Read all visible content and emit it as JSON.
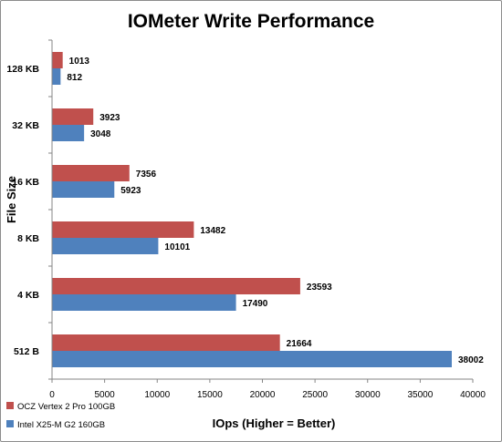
{
  "chart_data": {
    "type": "bar",
    "orientation": "horizontal",
    "title": "IOMeter Write Performance",
    "xlabel": "IOps (Higher = Better)",
    "ylabel": "File Size",
    "categories": [
      "128 KB",
      "32 KB",
      "16 KB",
      "8 KB",
      "4 KB",
      "512 B"
    ],
    "series": [
      {
        "name": "OCZ Vertex 2 Pro 100GB",
        "color": "#c0504d",
        "values": [
          1013,
          3923,
          7356,
          13482,
          23593,
          21664
        ]
      },
      {
        "name": "Intel X25-M G2 160GB",
        "color": "#4f81bd",
        "values": [
          812,
          3048,
          5923,
          10101,
          17490,
          38002
        ]
      }
    ],
    "xlim": [
      0,
      40000
    ],
    "xticks": [
      0,
      5000,
      10000,
      15000,
      20000,
      25000,
      30000,
      35000,
      40000
    ],
    "grid": false,
    "legend_position": "bottom-left"
  }
}
